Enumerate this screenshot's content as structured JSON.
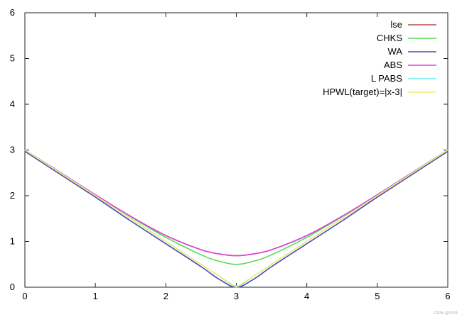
{
  "chart_data": {
    "type": "line",
    "title": "",
    "xlabel": "",
    "ylabel": "",
    "xlim": [
      0,
      6
    ],
    "ylim": [
      0,
      6
    ],
    "xticks": [
      0,
      1,
      2,
      3,
      4,
      5,
      6
    ],
    "yticks": [
      0,
      1,
      2,
      3,
      4,
      5,
      6
    ],
    "grid": false,
    "legend_position": "top-right",
    "x": [
      0,
      0.5,
      1,
      1.5,
      2,
      2.5,
      2.75,
      3,
      3.25,
      3.5,
      4,
      4.5,
      5,
      5.5,
      6
    ],
    "series": [
      {
        "name": "lse",
        "color": "#b5504a",
        "values": [
          3.0,
          2.51,
          2.02,
          1.55,
          1.13,
          0.82,
          0.73,
          0.69,
          0.73,
          0.82,
          1.13,
          1.55,
          2.02,
          2.51,
          3.0
        ]
      },
      {
        "name": "CHKS",
        "color": "#55dd55",
        "values": [
          3.0,
          2.51,
          2.02,
          1.54,
          1.09,
          0.71,
          0.57,
          0.5,
          0.57,
          0.71,
          1.09,
          1.54,
          2.02,
          2.51,
          3.0
        ]
      },
      {
        "name": "WA",
        "color": "#4a4ab8",
        "values": [
          2.97,
          2.47,
          1.97,
          1.45,
          0.95,
          0.45,
          0.18,
          0.0,
          0.18,
          0.45,
          0.95,
          1.45,
          1.97,
          2.47,
          2.97
        ]
      },
      {
        "name": "ABS",
        "color": "#dd44dd",
        "values": [
          3.0,
          2.51,
          2.02,
          1.55,
          1.13,
          0.82,
          0.73,
          0.69,
          0.73,
          0.82,
          1.13,
          1.55,
          2.02,
          2.51,
          3.0
        ]
      },
      {
        "name": "L PABS",
        "color": "#66eeee",
        "values": [
          3.0,
          2.5,
          2.0,
          1.5,
          1.0,
          0.5,
          0.25,
          0.03,
          0.25,
          0.5,
          1.0,
          1.5,
          2.0,
          2.5,
          3.0
        ]
      },
      {
        "name": "HPWL(target)=|x-3|",
        "color": "#f0ee70",
        "values": [
          3.0,
          2.5,
          2.0,
          1.5,
          1.0,
          0.5,
          0.25,
          0.0,
          0.25,
          0.5,
          1.0,
          1.5,
          2.0,
          2.5,
          3.0
        ]
      }
    ]
  },
  "watermark": "CSDN @SP.PA",
  "colors": {
    "frame": "#222222",
    "background": "#ffffff"
  }
}
